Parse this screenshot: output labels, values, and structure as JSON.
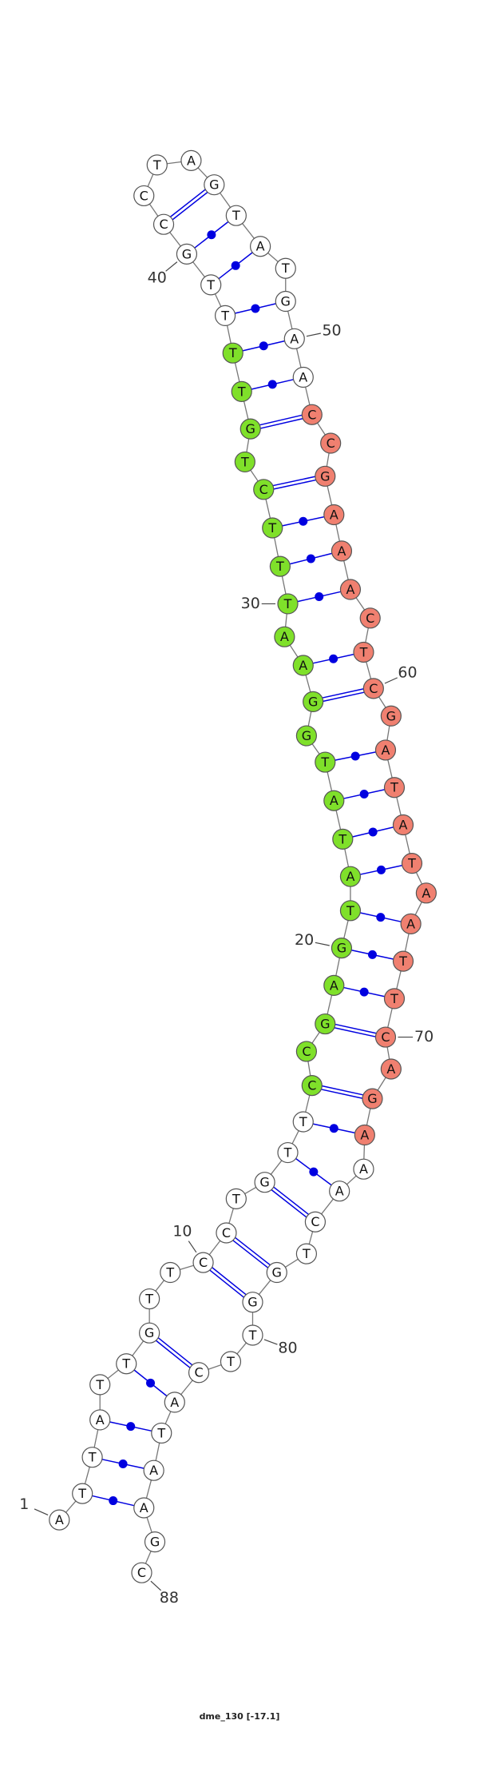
{
  "title": "dme_130 [-17.1]",
  "nodes": [
    {
      "base": "A",
      "color": "#ffffff"
    },
    {
      "base": "T",
      "color": "#ffffff"
    },
    {
      "base": "T",
      "color": "#ffffff"
    },
    {
      "base": "A",
      "color": "#ffffff"
    },
    {
      "base": "T",
      "color": "#ffffff"
    },
    {
      "base": "T",
      "color": "#ffffff"
    },
    {
      "base": "G",
      "color": "#ffffff"
    },
    {
      "base": "T",
      "color": "#ffffff"
    },
    {
      "base": "T",
      "color": "#ffffff"
    },
    {
      "base": "C",
      "color": "#ffffff"
    },
    {
      "base": "C",
      "color": "#ffffff"
    },
    {
      "base": "T",
      "color": "#ffffff"
    },
    {
      "base": "G",
      "color": "#ffffff"
    },
    {
      "base": "T",
      "color": "#ffffff"
    },
    {
      "base": "T",
      "color": "#ffffff"
    },
    {
      "base": "C",
      "color": "#7fe02a"
    },
    {
      "base": "C",
      "color": "#7fe02a"
    },
    {
      "base": "G",
      "color": "#7fe02a"
    },
    {
      "base": "A",
      "color": "#7fe02a"
    },
    {
      "base": "G",
      "color": "#7fe02a"
    },
    {
      "base": "T",
      "color": "#7fe02a"
    },
    {
      "base": "A",
      "color": "#7fe02a"
    },
    {
      "base": "T",
      "color": "#7fe02a"
    },
    {
      "base": "A",
      "color": "#7fe02a"
    },
    {
      "base": "T",
      "color": "#7fe02a"
    },
    {
      "base": "G",
      "color": "#7fe02a"
    },
    {
      "base": "G",
      "color": "#7fe02a"
    },
    {
      "base": "A",
      "color": "#7fe02a"
    },
    {
      "base": "A",
      "color": "#7fe02a"
    },
    {
      "base": "T",
      "color": "#7fe02a"
    },
    {
      "base": "T",
      "color": "#7fe02a"
    },
    {
      "base": "T",
      "color": "#7fe02a"
    },
    {
      "base": "C",
      "color": "#7fe02a"
    },
    {
      "base": "T",
      "color": "#7fe02a"
    },
    {
      "base": "G",
      "color": "#7fe02a"
    },
    {
      "base": "T",
      "color": "#7fe02a"
    },
    {
      "base": "T",
      "color": "#7fe02a"
    },
    {
      "base": "T",
      "color": "#ffffff"
    },
    {
      "base": "T",
      "color": "#ffffff"
    },
    {
      "base": "G",
      "color": "#ffffff"
    },
    {
      "base": "C",
      "color": "#ffffff"
    },
    {
      "base": "C",
      "color": "#ffffff"
    },
    {
      "base": "T",
      "color": "#ffffff"
    },
    {
      "base": "A",
      "color": "#ffffff"
    },
    {
      "base": "G",
      "color": "#ffffff"
    },
    {
      "base": "T",
      "color": "#ffffff"
    },
    {
      "base": "A",
      "color": "#ffffff"
    },
    {
      "base": "T",
      "color": "#ffffff"
    },
    {
      "base": "G",
      "color": "#ffffff"
    },
    {
      "base": "A",
      "color": "#ffffff"
    },
    {
      "base": "A",
      "color": "#ffffff"
    },
    {
      "base": "C",
      "color": "#f08070"
    },
    {
      "base": "C",
      "color": "#f08070"
    },
    {
      "base": "G",
      "color": "#f08070"
    },
    {
      "base": "A",
      "color": "#f08070"
    },
    {
      "base": "A",
      "color": "#f08070"
    },
    {
      "base": "A",
      "color": "#f08070"
    },
    {
      "base": "C",
      "color": "#f08070"
    },
    {
      "base": "T",
      "color": "#f08070"
    },
    {
      "base": "C",
      "color": "#f08070"
    },
    {
      "base": "G",
      "color": "#f08070"
    },
    {
      "base": "A",
      "color": "#f08070"
    },
    {
      "base": "T",
      "color": "#f08070"
    },
    {
      "base": "A",
      "color": "#f08070"
    },
    {
      "base": "T",
      "color": "#f08070"
    },
    {
      "base": "A",
      "color": "#f08070"
    },
    {
      "base": "A",
      "color": "#f08070"
    },
    {
      "base": "T",
      "color": "#f08070"
    },
    {
      "base": "T",
      "color": "#f08070"
    },
    {
      "base": "C",
      "color": "#f08070"
    },
    {
      "base": "A",
      "color": "#f08070"
    },
    {
      "base": "G",
      "color": "#f08070"
    },
    {
      "base": "A",
      "color": "#f08070"
    },
    {
      "base": "A",
      "color": "#ffffff"
    },
    {
      "base": "A",
      "color": "#ffffff"
    },
    {
      "base": "C",
      "color": "#ffffff"
    },
    {
      "base": "T",
      "color": "#ffffff"
    },
    {
      "base": "G",
      "color": "#ffffff"
    },
    {
      "base": "G",
      "color": "#ffffff"
    },
    {
      "base": "T",
      "color": "#ffffff"
    },
    {
      "base": "T",
      "color": "#ffffff"
    },
    {
      "base": "C",
      "color": "#ffffff"
    },
    {
      "base": "A",
      "color": "#ffffff"
    },
    {
      "base": "T",
      "color": "#ffffff"
    },
    {
      "base": "A",
      "color": "#ffffff"
    },
    {
      "base": "A",
      "color": "#ffffff"
    },
    {
      "base": "G",
      "color": "#ffffff"
    },
    {
      "base": "C",
      "color": "#ffffff"
    }
  ],
  "position_labels": [
    "1",
    "10",
    "20",
    "30",
    "40",
    "50",
    "60",
    "70",
    "80",
    "88"
  ]
}
